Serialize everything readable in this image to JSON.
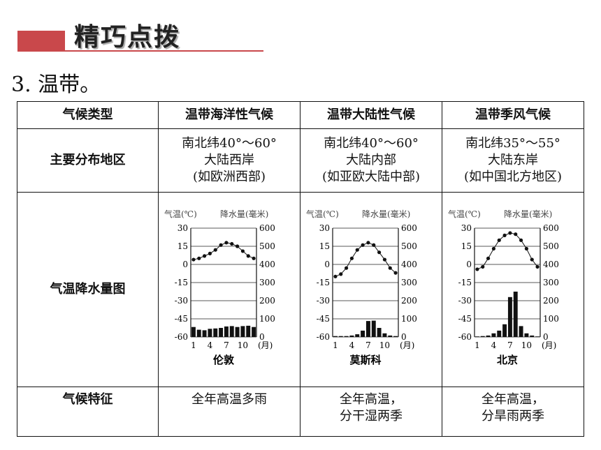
{
  "header": {
    "title": "精巧点拨"
  },
  "section": {
    "heading": "3. 温带。"
  },
  "table": {
    "columns": [
      "气候类型",
      "温带海洋性气候",
      "温带大陆性气候",
      "温带季风气候"
    ],
    "row_labels": {
      "distribution": "主要分布地区",
      "chart": "气温降水量图",
      "features": "气候特征"
    },
    "distribution": [
      [
        "南北纬40°～60°",
        "大陆西岸",
        "(如欧洲西部)"
      ],
      [
        "南北纬40°～60°",
        "大陆内部",
        "(如亚欧大陆中部)"
      ],
      [
        "南北纬35°～55°",
        "大陆东岸",
        "(如中国北方地区)"
      ]
    ],
    "features": [
      [
        "全年高温多雨"
      ],
      [
        "全年高温，",
        "分干湿两季"
      ],
      [
        "全年高温，",
        "分旱雨两季"
      ]
    ]
  },
  "chart_labels": {
    "temp_axis": "气温(℃)",
    "precip_axis": "降水量(毫米)",
    "month_unit": "(月)",
    "temp_ticks": [
      "30",
      "15",
      "0",
      "-15",
      "-30",
      "-45",
      "-60"
    ],
    "precip_ticks": [
      "600",
      "500",
      "400",
      "300",
      "200",
      "100",
      "0"
    ],
    "month_ticks": [
      "1",
      "4",
      "7",
      "10"
    ]
  },
  "chart_data": [
    {
      "type": "bar+line",
      "title": "伦敦",
      "x": [
        1,
        2,
        3,
        4,
        5,
        6,
        7,
        8,
        9,
        10,
        11,
        12
      ],
      "temperature": [
        4,
        5,
        7,
        9,
        12,
        16,
        18,
        17,
        15,
        11,
        7,
        5
      ],
      "precipitation": [
        55,
        40,
        37,
        45,
        47,
        50,
        58,
        60,
        55,
        60,
        62,
        55
      ],
      "ylim_temp": [
        -60,
        30
      ],
      "ylim_precip": [
        0,
        600
      ]
    },
    {
      "type": "bar+line",
      "title": "莫斯科",
      "x": [
        1,
        2,
        3,
        4,
        5,
        6,
        7,
        8,
        9,
        10,
        11,
        12
      ],
      "temperature": [
        -10,
        -8,
        -3,
        5,
        12,
        16,
        18,
        16,
        10,
        4,
        -3,
        -7
      ],
      "precipitation": [
        5,
        5,
        5,
        8,
        15,
        35,
        88,
        90,
        50,
        20,
        8,
        5
      ],
      "ylim_temp": [
        -60,
        30
      ],
      "ylim_precip": [
        0,
        600
      ]
    },
    {
      "type": "bar+line",
      "title": "北京",
      "x": [
        1,
        2,
        3,
        4,
        5,
        6,
        7,
        8,
        9,
        10,
        11,
        12
      ],
      "temperature": [
        -4,
        -2,
        5,
        13,
        20,
        24,
        26,
        25,
        20,
        13,
        4,
        -2
      ],
      "precipitation": [
        3,
        5,
        8,
        20,
        35,
        70,
        220,
        250,
        60,
        20,
        8,
        3
      ],
      "ylim_temp": [
        -60,
        30
      ],
      "ylim_precip": [
        0,
        600
      ]
    }
  ]
}
